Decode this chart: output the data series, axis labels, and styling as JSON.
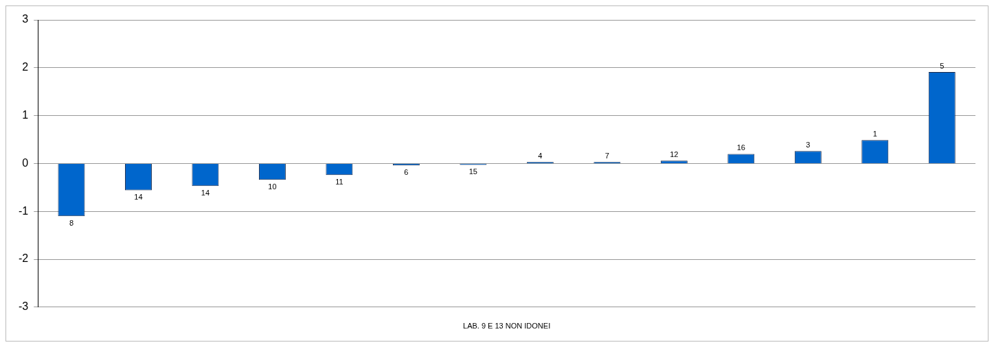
{
  "chart_data": {
    "type": "bar",
    "xlabel": "LAB. 9 E 13 NON IDONEI",
    "categories": [
      "8",
      "14",
      "14",
      "10",
      "11",
      "6",
      "15",
      "4",
      "7",
      "12",
      "16",
      "3",
      "1",
      "5"
    ],
    "values": [
      -1.1,
      -0.56,
      -0.47,
      -0.34,
      -0.24,
      -0.04,
      -0.03,
      0.03,
      0.03,
      0.06,
      0.2,
      0.26,
      0.49,
      1.91
    ],
    "color": "#0066cc",
    "ylim": [
      -3,
      3
    ],
    "yticks": [
      -3,
      -2,
      -1,
      0,
      1,
      2,
      3
    ],
    "grid": "y",
    "tick_labels": "y",
    "legend": false
  }
}
